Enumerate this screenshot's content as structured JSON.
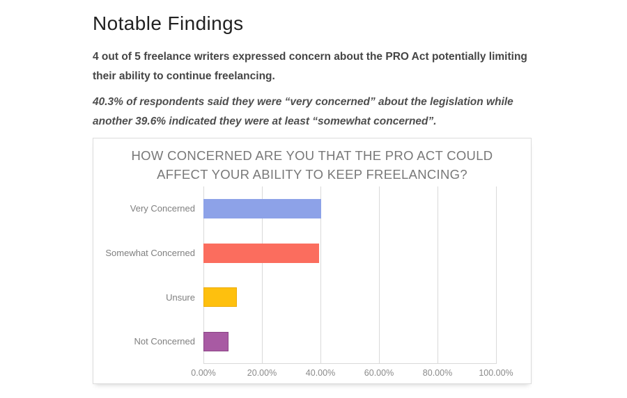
{
  "page": {
    "title": "Notable Findings",
    "paragraph1": "4 out of 5 freelance writers expressed concern about the PRO Act potentially limiting their ability to continue freelancing.",
    "paragraph2": "40.3% of respondents said they were “very concerned” about the legislation while another 39.6% indicated they were at least “somewhat concerned”."
  },
  "chart_data": {
    "type": "bar",
    "orientation": "horizontal",
    "title": "HOW CONCERNED ARE YOU THAT THE PRO ACT COULD AFFECT YOUR ABILITY TO KEEP FREELANCING?",
    "categories": [
      "Very Concerned",
      "Somewhat Concerned",
      "Unsure",
      "Not Concerned"
    ],
    "values": [
      40.3,
      39.6,
      11.5,
      8.6
    ],
    "bar_colors": [
      "#8DA2E8",
      "#FB6D5E",
      "#FEC00E",
      "#A85AA3"
    ],
    "bar_border_colors": [
      "#8DA2E8",
      "#FB6D5E",
      "#ECAB0A",
      "#8C4587"
    ],
    "x_tick_labels": [
      "0.00%",
      "20.00%",
      "40.00%",
      "60.00%",
      "80.00%",
      "100.00%"
    ],
    "x_tick_values": [
      0,
      20,
      40,
      60,
      80,
      100
    ],
    "xlim": [
      0,
      100
    ],
    "grid": true,
    "legend": false,
    "colors": {
      "gridline": "#d9d9d9",
      "title_text": "#787878",
      "axis_tick_text": "#8a8a8a",
      "category_text": "#7f7f7f",
      "card_border": "#dcdcdc"
    }
  }
}
